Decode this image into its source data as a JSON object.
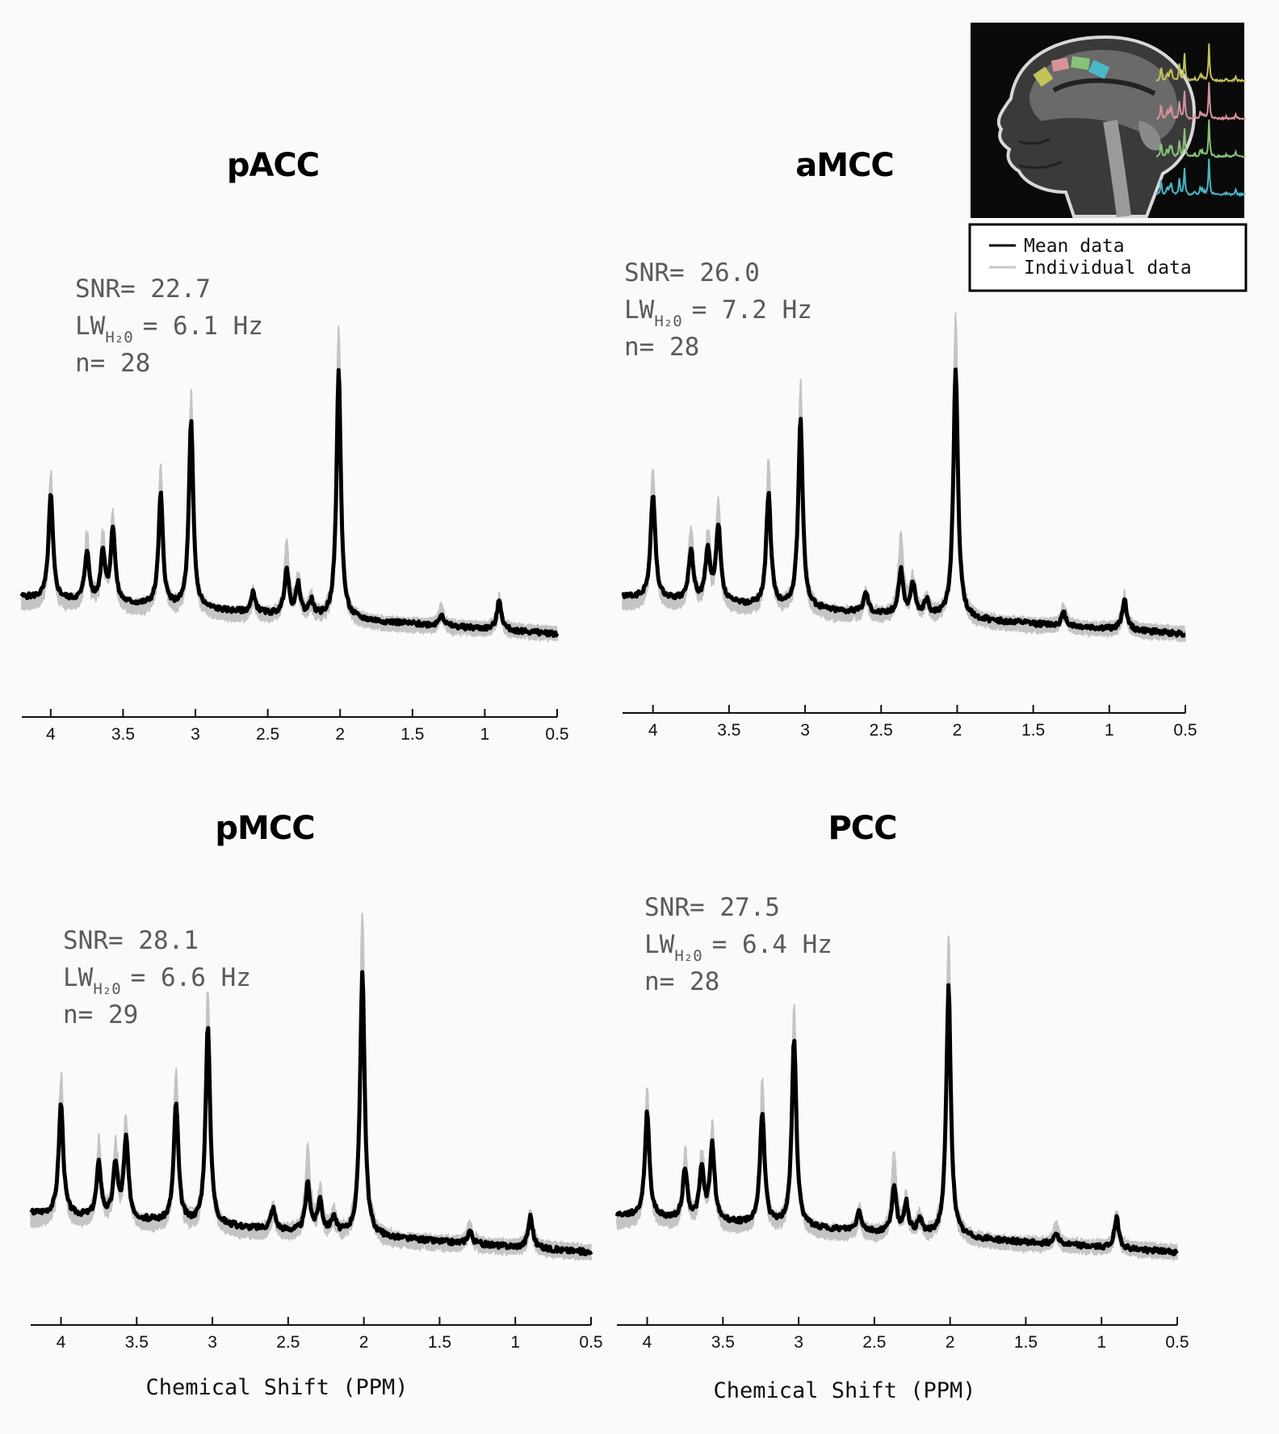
{
  "chart_data": [
    {
      "type": "line",
      "title": "pACC",
      "title_color": "#aeae4e",
      "stats": {
        "snr": "SNR= 22.7",
        "lw_main": "LW",
        "lw_sub": "H₂0",
        "lw_value": "= 6.1 Hz",
        "n": "n= 28"
      },
      "xlim": [
        4.2,
        0.5
      ],
      "xticks": [
        "4",
        "3.5",
        "3",
        "2.5",
        "2",
        "1.5",
        "1",
        "0.5"
      ],
      "xlabel": "",
      "series": [
        {
          "role": "mean",
          "color": "#000000",
          "peaks": [
            [
              4.0,
              0.42
            ],
            [
              3.75,
              0.2
            ],
            [
              3.64,
              0.2
            ],
            [
              3.57,
              0.3
            ],
            [
              3.24,
              0.45
            ],
            [
              3.03,
              0.75
            ],
            [
              2.37,
              0.18
            ],
            [
              2.29,
              0.12
            ],
            [
              2.01,
              1.0
            ],
            [
              2.2,
              0.06
            ],
            [
              2.6,
              0.08
            ],
            [
              1.3,
              0.05
            ],
            [
              0.9,
              0.12
            ]
          ]
        },
        {
          "role": "individual",
          "color": "#c4c4c4",
          "peaks": [
            [
              4.0,
              0.55
            ],
            [
              3.75,
              0.3
            ],
            [
              3.64,
              0.28
            ],
            [
              3.57,
              0.4
            ],
            [
              3.24,
              0.6
            ],
            [
              3.03,
              0.92
            ],
            [
              2.37,
              0.32
            ],
            [
              2.29,
              0.16
            ],
            [
              2.01,
              1.25
            ],
            [
              2.2,
              0.08
            ],
            [
              2.6,
              0.1
            ],
            [
              1.3,
              0.08
            ],
            [
              0.9,
              0.14
            ]
          ]
        }
      ]
    },
    {
      "type": "line",
      "title": "aMCC",
      "title_color": "#c5837f",
      "stats": {
        "snr": "SNR= 26.0",
        "lw_main": "LW",
        "lw_sub": "H₂0",
        "lw_value": "= 7.2 Hz",
        "n": "n= 28"
      },
      "xlim": [
        4.2,
        0.5
      ],
      "xticks": [
        "4",
        "3.5",
        "3",
        "2.5",
        "2",
        "1.5",
        "1",
        "0.5"
      ],
      "xlabel": "",
      "series": [
        {
          "role": "mean",
          "color": "#000000",
          "peaks": [
            [
              4.0,
              0.42
            ],
            [
              3.75,
              0.2
            ],
            [
              3.64,
              0.2
            ],
            [
              3.57,
              0.3
            ],
            [
              3.24,
              0.45
            ],
            [
              3.03,
              0.75
            ],
            [
              2.37,
              0.18
            ],
            [
              2.29,
              0.12
            ],
            [
              2.01,
              1.0
            ],
            [
              2.2,
              0.06
            ],
            [
              2.6,
              0.08
            ],
            [
              1.3,
              0.05
            ],
            [
              0.9,
              0.12
            ]
          ]
        },
        {
          "role": "individual",
          "color": "#c4c4c4",
          "peaks": [
            [
              4.0,
              0.55
            ],
            [
              3.75,
              0.3
            ],
            [
              3.64,
              0.28
            ],
            [
              3.57,
              0.4
            ],
            [
              3.24,
              0.6
            ],
            [
              3.03,
              0.92
            ],
            [
              2.37,
              0.32
            ],
            [
              2.29,
              0.16
            ],
            [
              2.01,
              1.25
            ],
            [
              2.2,
              0.08
            ],
            [
              2.6,
              0.1
            ],
            [
              1.3,
              0.08
            ],
            [
              0.9,
              0.14
            ]
          ]
        }
      ]
    },
    {
      "type": "line",
      "title": "pMCC",
      "title_color": "#7dbf78",
      "stats": {
        "snr": "SNR= 28.1",
        "lw_main": "LW",
        "lw_sub": "H₂0",
        "lw_value": "= 6.6 Hz",
        "n": "n= 29"
      },
      "xlim": [
        4.2,
        0.5
      ],
      "xticks": [
        "4",
        "3.5",
        "3",
        "2.5",
        "2",
        "1.5",
        "1",
        "0.5"
      ],
      "xlabel": "Chemical Shift (PPM)",
      "series": [
        {
          "role": "mean",
          "color": "#000000",
          "peaks": [
            [
              4.0,
              0.42
            ],
            [
              3.75,
              0.2
            ],
            [
              3.64,
              0.2
            ],
            [
              3.57,
              0.3
            ],
            [
              3.24,
              0.45
            ],
            [
              3.03,
              0.75
            ],
            [
              2.37,
              0.18
            ],
            [
              2.29,
              0.12
            ],
            [
              2.01,
              1.0
            ],
            [
              2.2,
              0.06
            ],
            [
              2.6,
              0.08
            ],
            [
              1.3,
              0.05
            ],
            [
              0.9,
              0.12
            ]
          ]
        },
        {
          "role": "individual",
          "color": "#c4c4c4",
          "peaks": [
            [
              4.0,
              0.55
            ],
            [
              3.75,
              0.3
            ],
            [
              3.64,
              0.28
            ],
            [
              3.57,
              0.4
            ],
            [
              3.24,
              0.6
            ],
            [
              3.03,
              0.92
            ],
            [
              2.37,
              0.32
            ],
            [
              2.29,
              0.16
            ],
            [
              2.01,
              1.25
            ],
            [
              2.2,
              0.08
            ],
            [
              2.6,
              0.1
            ],
            [
              1.3,
              0.08
            ],
            [
              0.9,
              0.14
            ]
          ]
        }
      ]
    },
    {
      "type": "line",
      "title": "PCC",
      "title_color": "#4fb6b8",
      "stats": {
        "snr": "SNR= 27.5",
        "lw_main": "LW",
        "lw_sub": "H₂0",
        "lw_value": "= 6.4 Hz",
        "n": "n= 28"
      },
      "xlim": [
        4.2,
        0.5
      ],
      "xticks": [
        "4",
        "3.5",
        "3",
        "2.5",
        "2",
        "1.5",
        "1",
        "0.5"
      ],
      "xlabel": "Chemical Shift (PPM)",
      "series": [
        {
          "role": "mean",
          "color": "#000000",
          "peaks": [
            [
              4.0,
              0.42
            ],
            [
              3.75,
              0.2
            ],
            [
              3.64,
              0.2
            ],
            [
              3.57,
              0.3
            ],
            [
              3.24,
              0.45
            ],
            [
              3.03,
              0.75
            ],
            [
              2.37,
              0.18
            ],
            [
              2.29,
              0.12
            ],
            [
              2.01,
              1.0
            ],
            [
              2.2,
              0.06
            ],
            [
              2.6,
              0.08
            ],
            [
              1.3,
              0.05
            ],
            [
              0.9,
              0.12
            ]
          ]
        },
        {
          "role": "individual",
          "color": "#c4c4c4",
          "peaks": [
            [
              4.0,
              0.55
            ],
            [
              3.75,
              0.3
            ],
            [
              3.64,
              0.28
            ],
            [
              3.57,
              0.4
            ],
            [
              3.24,
              0.6
            ],
            [
              3.03,
              0.92
            ],
            [
              2.37,
              0.32
            ],
            [
              2.29,
              0.16
            ],
            [
              2.01,
              1.25
            ],
            [
              2.2,
              0.08
            ],
            [
              2.6,
              0.1
            ],
            [
              1.3,
              0.08
            ],
            [
              0.9,
              0.14
            ]
          ]
        }
      ]
    }
  ],
  "legend": {
    "items": [
      {
        "label": "Mean data",
        "color": "#000000"
      },
      {
        "label": "Individual data",
        "color": "#c8c8c8"
      }
    ]
  },
  "inset": {
    "background": "#0a0a0a",
    "region_colors": [
      "#c4c25a",
      "#d7939a",
      "#86c479",
      "#49b7c4"
    ]
  }
}
